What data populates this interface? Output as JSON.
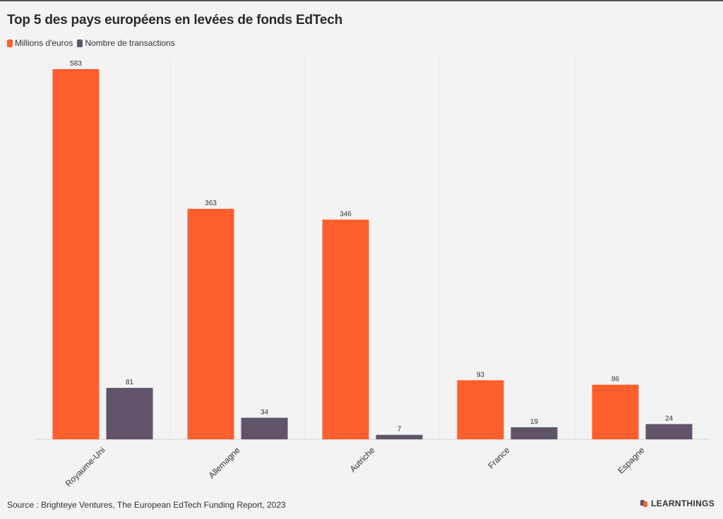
{
  "title": "Top 5 des pays européens en levées de fonds EdTech",
  "source": "Source : Brighteye Ventures, The European EdTech Funding Report, 2023",
  "logo_text": "LEARNTHINGS",
  "colors": {
    "orange": "#ff5e2e",
    "purple": "#605469",
    "grid": "#e6e6e6",
    "axis": "#d0d0d0"
  },
  "chart_data": {
    "type": "bar",
    "categories": [
      "Royaume-Uni",
      "Allemagne",
      "Autriche",
      "France",
      "Espagne"
    ],
    "series": [
      {
        "name": "Millions d'euros",
        "values": [
          583,
          363,
          346,
          93,
          86
        ]
      },
      {
        "name": "Nombre de transactions",
        "values": [
          81,
          34,
          7,
          19,
          24
        ]
      }
    ],
    "ylim": [
      0,
      583
    ],
    "legend": "top-left",
    "grid": "vertical"
  }
}
